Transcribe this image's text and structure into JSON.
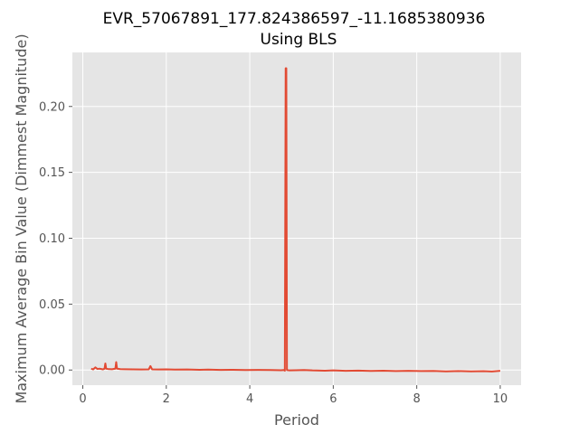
{
  "chart_data": {
    "type": "line",
    "title_line1": "EVR_57067891_177.824386597_-11.1685380936",
    "title_line2": "Using BLS",
    "xlabel": "Period",
    "ylabel": "Maximum Average Bin Value (Dimmest Magnitude)",
    "xlim": [
      -0.25,
      10.5
    ],
    "ylim": [
      -0.0115,
      0.241
    ],
    "xticks": [
      0,
      2,
      4,
      6,
      8,
      10
    ],
    "xtick_labels": [
      "0",
      "2",
      "4",
      "6",
      "8",
      "10"
    ],
    "yticks": [
      0.0,
      0.05,
      0.1,
      0.15,
      0.2
    ],
    "ytick_labels": [
      "0.00",
      "0.05",
      "0.10",
      "0.15",
      "0.20"
    ],
    "grid": true,
    "style": "ggplot",
    "colors": {
      "line": "#E24A33",
      "plot_bg": "#E5E5E5",
      "grid": "#FFFFFF"
    },
    "series": [
      {
        "points": [
          [
            0.2,
            0.001
          ],
          [
            0.25,
            0.0005
          ],
          [
            0.3,
            0.002
          ],
          [
            0.35,
            0.0008
          ],
          [
            0.4,
            0.001
          ],
          [
            0.48,
            0.0005
          ],
          [
            0.52,
            0.001
          ],
          [
            0.54,
            0.005
          ],
          [
            0.56,
            0.001
          ],
          [
            0.6,
            0.0008
          ],
          [
            0.7,
            0.0006
          ],
          [
            0.78,
            0.001
          ],
          [
            0.8,
            0.006
          ],
          [
            0.82,
            0.001
          ],
          [
            0.9,
            0.0007
          ],
          [
            1.0,
            0.0006
          ],
          [
            1.2,
            0.0005
          ],
          [
            1.4,
            0.0004
          ],
          [
            1.58,
            0.0005
          ],
          [
            1.62,
            0.003
          ],
          [
            1.66,
            0.0005
          ],
          [
            1.8,
            0.0004
          ],
          [
            2.0,
            0.0005
          ],
          [
            2.2,
            0.0003
          ],
          [
            2.5,
            0.0004
          ],
          [
            2.8,
            0.0002
          ],
          [
            3.0,
            0.0003
          ],
          [
            3.3,
            0.0001
          ],
          [
            3.6,
            0.0002
          ],
          [
            3.9,
            0.0
          ],
          [
            4.2,
            0.0001
          ],
          [
            4.5,
            0.0
          ],
          [
            4.75,
            -0.0002
          ],
          [
            4.82,
            0.0
          ],
          [
            4.84,
            -0.0005
          ],
          [
            4.86,
            0.229
          ],
          [
            4.875,
            0.229
          ],
          [
            4.89,
            0.0
          ],
          [
            4.95,
            -0.0003
          ],
          [
            5.1,
            -0.0002
          ],
          [
            5.3,
            0.0
          ],
          [
            5.5,
            -0.0003
          ],
          [
            5.8,
            -0.0005
          ],
          [
            6.0,
            -0.0003
          ],
          [
            6.3,
            -0.0006
          ],
          [
            6.6,
            -0.0004
          ],
          [
            6.9,
            -0.0007
          ],
          [
            7.2,
            -0.0005
          ],
          [
            7.5,
            -0.0008
          ],
          [
            7.8,
            -0.0006
          ],
          [
            8.1,
            -0.0008
          ],
          [
            8.4,
            -0.0007
          ],
          [
            8.7,
            -0.001
          ],
          [
            9.0,
            -0.0008
          ],
          [
            9.3,
            -0.001
          ],
          [
            9.6,
            -0.0009
          ],
          [
            9.8,
            -0.0011
          ],
          [
            10.0,
            -0.0006
          ]
        ]
      }
    ]
  }
}
